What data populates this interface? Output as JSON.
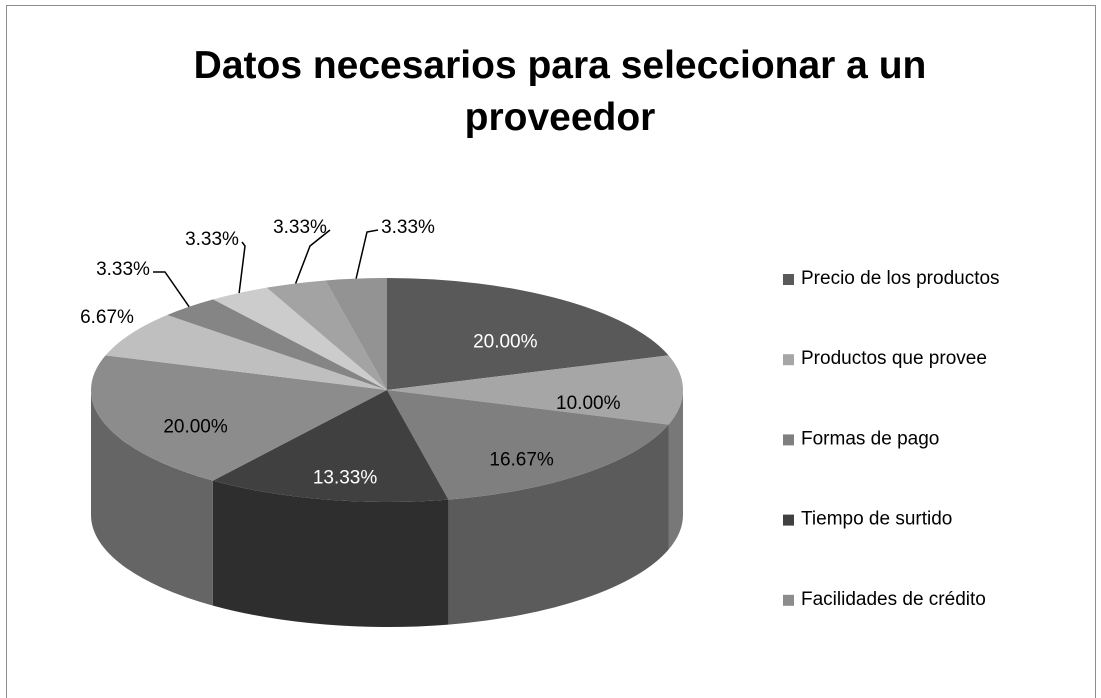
{
  "chart_data": {
    "type": "pie",
    "title": "Datos necesarios para seleccionar a un proveedor",
    "categories": [
      "Precio de los productos",
      "Productos que provee",
      "Formas de pago",
      "Tiempo de surtido",
      "Facilidades de crédito",
      null,
      null,
      null,
      null,
      null
    ],
    "values": [
      20.0,
      10.0,
      16.67,
      13.33,
      20.0,
      6.67,
      3.33,
      3.33,
      3.33,
      3.33
    ],
    "value_labels": [
      "20.00%",
      "10.00%",
      "16.67%",
      "13.33%",
      "20.00%",
      "6.67%",
      "3.33%",
      "3.33%",
      "3.33%",
      "3.33%"
    ],
    "colors": [
      "#595959",
      "#a6a6a6",
      "#7f7f7f",
      "#404040",
      "#8c8c8c",
      "#bfbfbf",
      "#858585",
      "#cccccc",
      "#a3a3a3",
      "#939393"
    ],
    "legend": "right"
  }
}
